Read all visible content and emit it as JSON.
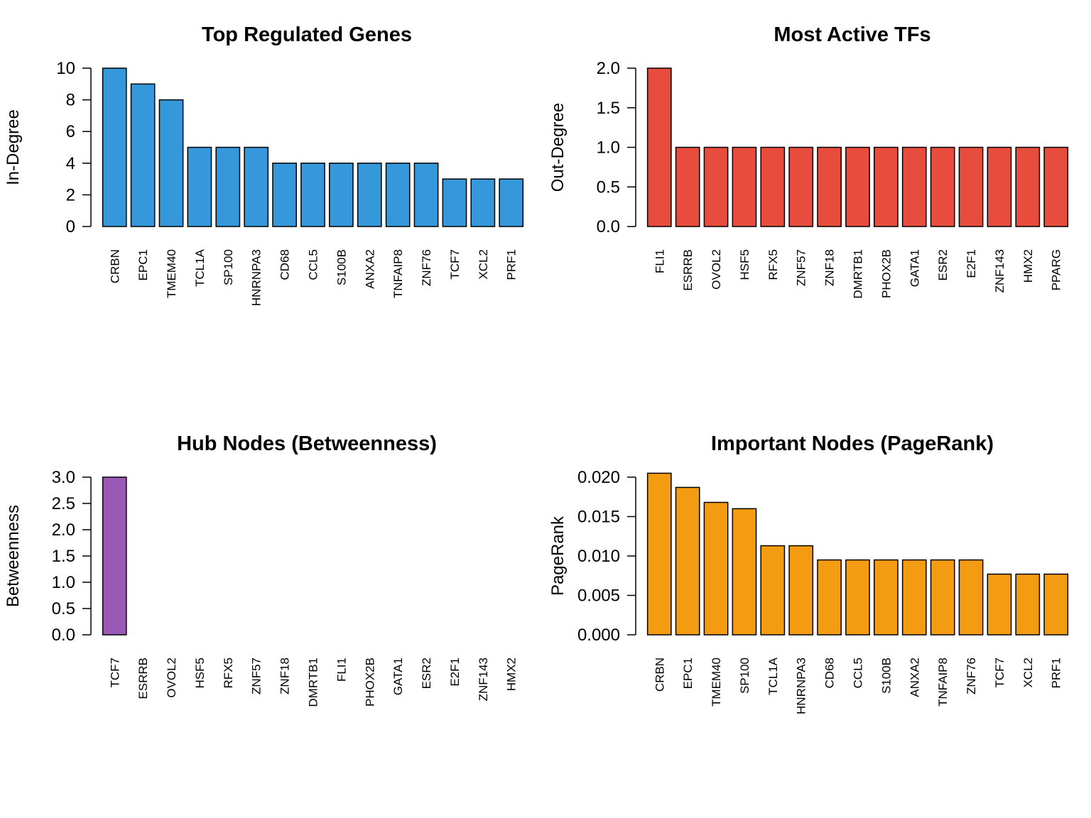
{
  "chart_data": [
    {
      "type": "bar",
      "title": "Top Regulated Genes",
      "xlabel": "",
      "ylabel": "In-Degree",
      "ylim": [
        0,
        10
      ],
      "yticks": [
        "0",
        "2",
        "4",
        "6",
        "8",
        "10"
      ],
      "color": "#3498db",
      "categories": [
        "CRBN",
        "EPC1",
        "TMEM40",
        "TCL1A",
        "SP100",
        "HNRNPA3",
        "CD68",
        "CCL5",
        "S100B",
        "ANXA2",
        "TNFAIP8",
        "ZNF76",
        "TCF7",
        "XCL2",
        "PRF1"
      ],
      "values": [
        10,
        9,
        8,
        5,
        5,
        5,
        4,
        4,
        4,
        4,
        4,
        4,
        3,
        3,
        3
      ]
    },
    {
      "type": "bar",
      "title": "Most Active TFs",
      "xlabel": "",
      "ylabel": "Out-Degree",
      "ylim": [
        0,
        2
      ],
      "yticks": [
        "0.0",
        "0.5",
        "1.0",
        "1.5",
        "2.0"
      ],
      "color": "#e74c3c",
      "categories": [
        "FLI1",
        "ESRRB",
        "OVOL2",
        "HSF5",
        "RFX5",
        "ZNF57",
        "ZNF18",
        "DMRTB1",
        "PHOX2B",
        "GATA1",
        "ESR2",
        "E2F1",
        "ZNF143",
        "HMX2",
        "PPARG"
      ],
      "values": [
        2,
        1,
        1,
        1,
        1,
        1,
        1,
        1,
        1,
        1,
        1,
        1,
        1,
        1,
        1
      ]
    },
    {
      "type": "bar",
      "title": "Hub Nodes (Betweenness)",
      "xlabel": "",
      "ylabel": "Betweenness",
      "ylim": [
        0,
        3
      ],
      "yticks": [
        "0.0",
        "0.5",
        "1.0",
        "1.5",
        "2.0",
        "2.5",
        "3.0"
      ],
      "color": "#9b59b6",
      "categories": [
        "TCF7",
        "ESRRB",
        "OVOL2",
        "HSF5",
        "RFX5",
        "ZNF57",
        "ZNF18",
        "DMRTB1",
        "FLI1",
        "PHOX2B",
        "GATA1",
        "ESR2",
        "E2F1",
        "ZNF143",
        "HMX2"
      ],
      "values": [
        3,
        0,
        0,
        0,
        0,
        0,
        0,
        0,
        0,
        0,
        0,
        0,
        0,
        0,
        0
      ]
    },
    {
      "type": "bar",
      "title": "Important Nodes (PageRank)",
      "xlabel": "",
      "ylabel": "PageRank",
      "ylim": [
        0,
        0.02
      ],
      "yticks": [
        "0.000",
        "0.005",
        "0.010",
        "0.015",
        "0.020"
      ],
      "color": "#f39c12",
      "categories": [
        "CRBN",
        "EPC1",
        "TMEM40",
        "SP100",
        "TCL1A",
        "HNRNPA3",
        "CD68",
        "CCL5",
        "S100B",
        "ANXA2",
        "TNFAIP8",
        "ZNF76",
        "TCF7",
        "XCL2",
        "PRF1"
      ],
      "values": [
        0.0205,
        0.0187,
        0.0168,
        0.016,
        0.0113,
        0.0113,
        0.0095,
        0.0095,
        0.0095,
        0.0095,
        0.0095,
        0.0095,
        0.0077,
        0.0077,
        0.0077
      ]
    }
  ]
}
